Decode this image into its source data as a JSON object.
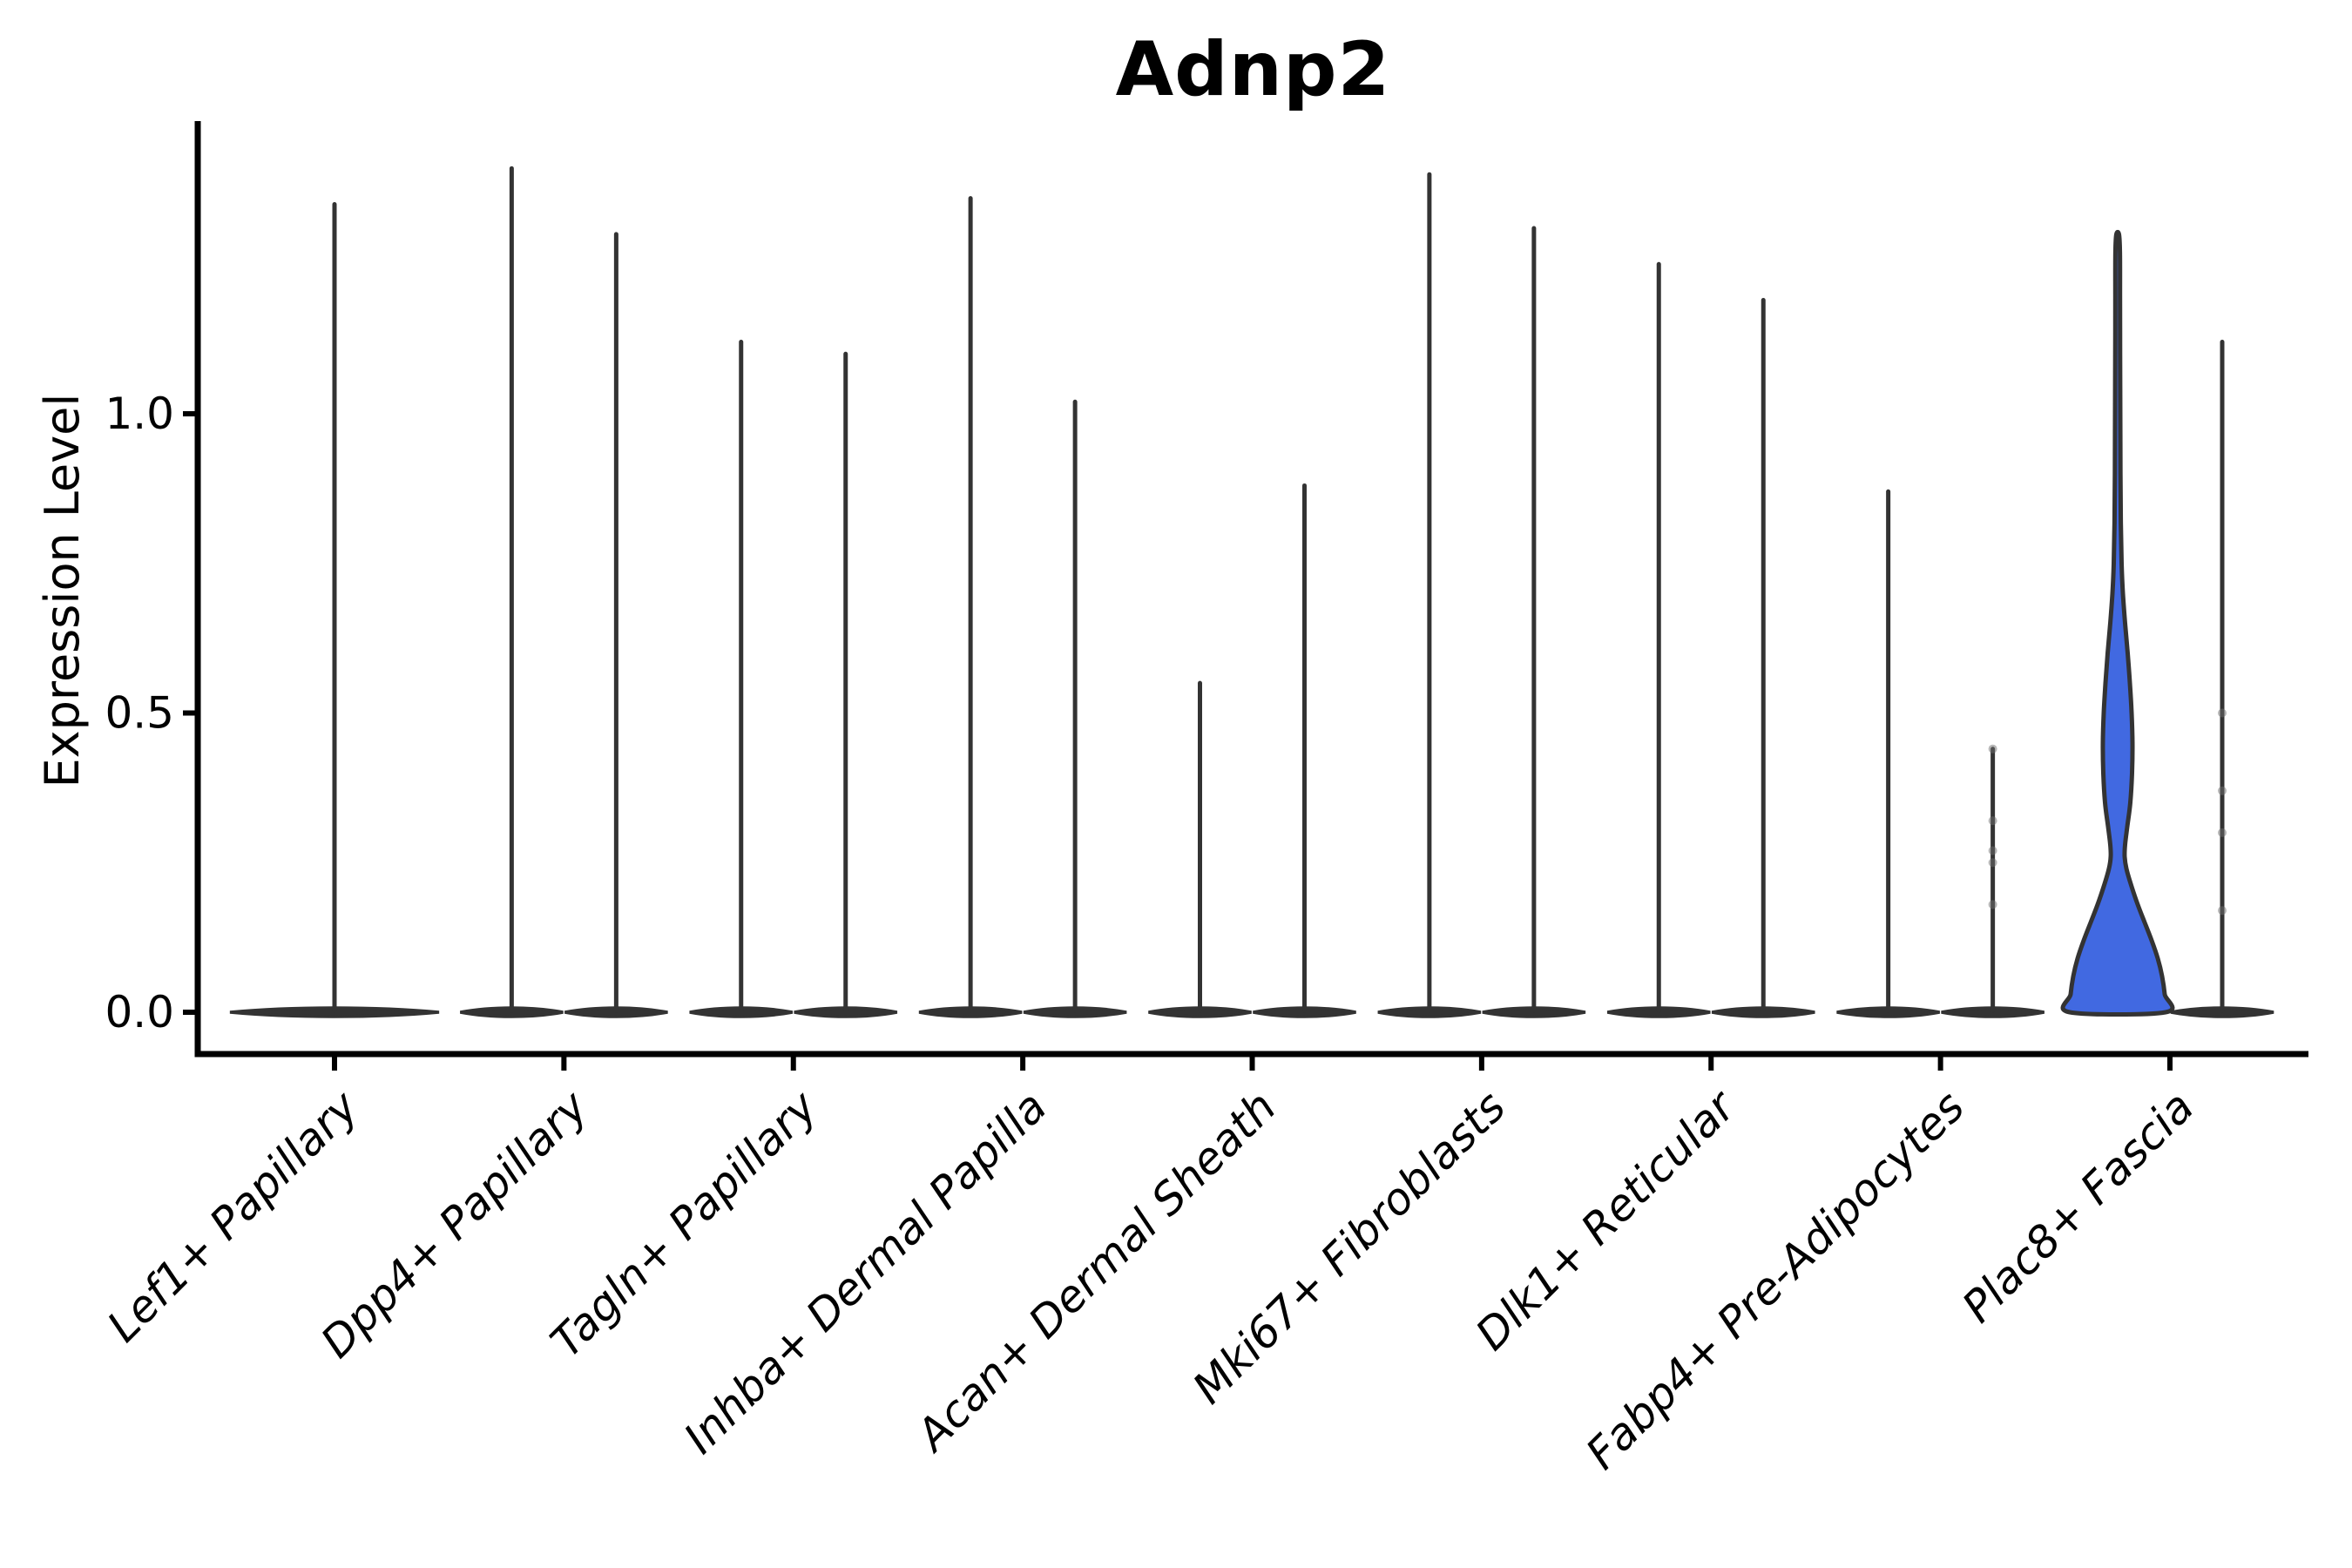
{
  "title": "Adnp2",
  "y_axis": {
    "label": "Expression Level",
    "tick_labels": [
      "0.0",
      "0.5",
      "1.0"
    ]
  },
  "colors": {
    "violin_fill": "#4169e1",
    "violin_outline": "#333333",
    "axis": "#000000",
    "text": "#000000",
    "point_marker": "#6f6f6f"
  },
  "chart_data": {
    "type": "violin",
    "title": "Adnp2",
    "xlabel": "",
    "ylabel": "Expression Level",
    "yticks": [
      0.0,
      0.5,
      1.0
    ],
    "ylim": [
      -0.07,
      1.49
    ],
    "grid": false,
    "legend": "none",
    "x_tick_label_style": "italic, rotated 45deg, right-anchored",
    "categories": [
      "Lef1+ Papillary",
      "Dpp4+ Papillary",
      "Tagln+ Papillary",
      "Inhba+ Dermal Papilla",
      "Acan+ Dermal Sheath",
      "Mki67+ Fibroblasts",
      "Dlk1+ Reticular",
      "Fabp4+ Pre-Adipocytes",
      "Plac8+ Fascia"
    ],
    "series": [
      {
        "category": "Lef1+ Papillary",
        "violins": [
          {
            "pos": "center",
            "max": 1.35,
            "body": "collapsed"
          }
        ]
      },
      {
        "category": "Dpp4+ Papillary",
        "violins": [
          {
            "pos": "left",
            "max": 1.41,
            "body": "collapsed"
          },
          {
            "pos": "right",
            "max": 1.3,
            "body": "collapsed"
          }
        ]
      },
      {
        "category": "Tagln+ Papillary",
        "violins": [
          {
            "pos": "left",
            "max": 1.12,
            "body": "collapsed"
          },
          {
            "pos": "right",
            "max": 1.1,
            "body": "collapsed"
          }
        ]
      },
      {
        "category": "Inhba+ Dermal Papilla",
        "violins": [
          {
            "pos": "left",
            "max": 1.36,
            "body": "collapsed"
          },
          {
            "pos": "right",
            "max": 1.02,
            "body": "collapsed"
          }
        ]
      },
      {
        "category": "Acan+ Dermal Sheath",
        "violins": [
          {
            "pos": "left",
            "max": 0.55,
            "body": "collapsed"
          },
          {
            "pos": "right",
            "max": 0.88,
            "body": "collapsed"
          }
        ]
      },
      {
        "category": "Mki67+ Fibroblasts",
        "violins": [
          {
            "pos": "left",
            "max": 1.4,
            "body": "collapsed"
          },
          {
            "pos": "right",
            "max": 1.31,
            "body": "collapsed"
          }
        ]
      },
      {
        "category": "Dlk1+ Reticular",
        "violins": [
          {
            "pos": "left",
            "max": 1.25,
            "body": "collapsed"
          },
          {
            "pos": "right",
            "max": 1.19,
            "body": "collapsed"
          }
        ]
      },
      {
        "category": "Fabp4+ Pre-Adipocytes",
        "violins": [
          {
            "pos": "left",
            "max": 0.87,
            "body": "collapsed"
          },
          {
            "pos": "right",
            "max": 0.44,
            "body": "collapsed",
            "points": [
              0.44,
              0.32,
              0.27,
              0.25,
              0.18
            ]
          }
        ]
      },
      {
        "category": "Plac8+ Fascia",
        "violins": [
          {
            "pos": "left",
            "max": 1.3,
            "body": "shaped",
            "fill": "#4169e1",
            "profile": [
              [
                0.0,
                55
              ],
              [
                0.03,
                54
              ],
              [
                0.06,
                51
              ],
              [
                0.09,
                46
              ],
              [
                0.12,
                39
              ],
              [
                0.15,
                31
              ],
              [
                0.18,
                23
              ],
              [
                0.21,
                16
              ],
              [
                0.24,
                10
              ],
              [
                0.26,
                8
              ],
              [
                0.28,
                8.5
              ],
              [
                0.31,
                11
              ],
              [
                0.35,
                14.5
              ],
              [
                0.4,
                16.5
              ],
              [
                0.45,
                17
              ],
              [
                0.5,
                16
              ],
              [
                0.55,
                14
              ],
              [
                0.6,
                11.5
              ],
              [
                0.65,
                8.5
              ],
              [
                0.7,
                6
              ],
              [
                0.75,
                4.5
              ],
              [
                0.82,
                3.6
              ],
              [
                0.9,
                3.2
              ],
              [
                1.0,
                3.0
              ],
              [
                1.1,
                2.8
              ],
              [
                1.2,
                2.7
              ],
              [
                1.27,
                2.6
              ],
              [
                1.3,
                1.5
              ]
            ]
          },
          {
            "pos": "right",
            "max": 1.12,
            "body": "collapsed",
            "points": [
              0.5,
              0.37,
              0.3,
              0.17
            ]
          }
        ]
      }
    ]
  }
}
